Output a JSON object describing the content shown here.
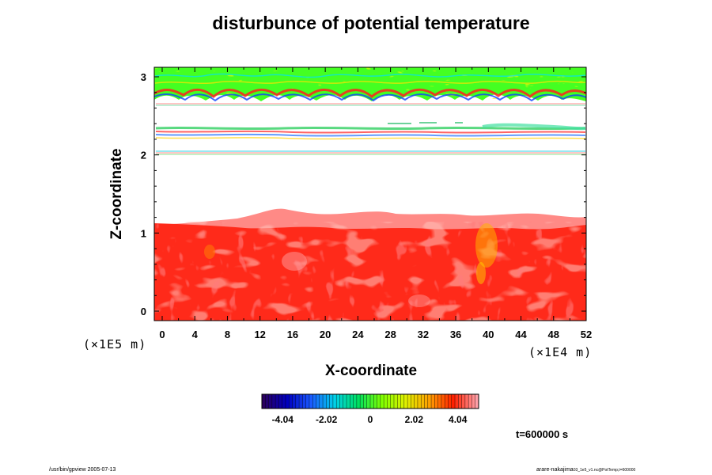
{
  "chart_data": {
    "type": "heatmap",
    "title": "disturbunce of potential temperature",
    "xlabel": "X-coordinate",
    "ylabel": "Z-coordinate",
    "x_unit": "(×1E4 m)",
    "y_unit": "(×1E5 m)",
    "xlim": [
      0,
      52
    ],
    "ylim": [
      0,
      3
    ],
    "x_ticks": [
      "0",
      "4",
      "8",
      "12",
      "16",
      "20",
      "24",
      "28",
      "32",
      "36",
      "40",
      "44",
      "48",
      "52"
    ],
    "y_ticks": [
      "0",
      "1",
      "2",
      "3"
    ],
    "colorbar": {
      "min": -5,
      "max": 5,
      "labels": [
        "-4.04",
        "-2.02",
        "0",
        "2.02",
        "4.04"
      ],
      "colors": [
        "#2a0060",
        "#0000c0",
        "#1a5aff",
        "#00d0e8",
        "#00e060",
        "#80ff00",
        "#e0f000",
        "#ffa000",
        "#ff2000",
        "#ffa0a8"
      ]
    },
    "regions": [
      {
        "z_range": [
          0,
          1.1
        ],
        "value": 4.5,
        "color": "#ff2a1a"
      },
      {
        "z_range": [
          1.1,
          1.3
        ],
        "value": 5.0,
        "color": "#ff8080"
      },
      {
        "z_range": [
          2.65,
          3.0
        ],
        "value": 1.0,
        "color": "#44ff22"
      }
    ]
  },
  "annotations": {
    "time": "t=600000 s"
  },
  "footer": {
    "left": "/usr/bin/gpview 2005-07-13",
    "right_main": "arare-nakajima",
    "right_sub": "03_1e5_v1.nc@PotTemp,t=600000"
  }
}
